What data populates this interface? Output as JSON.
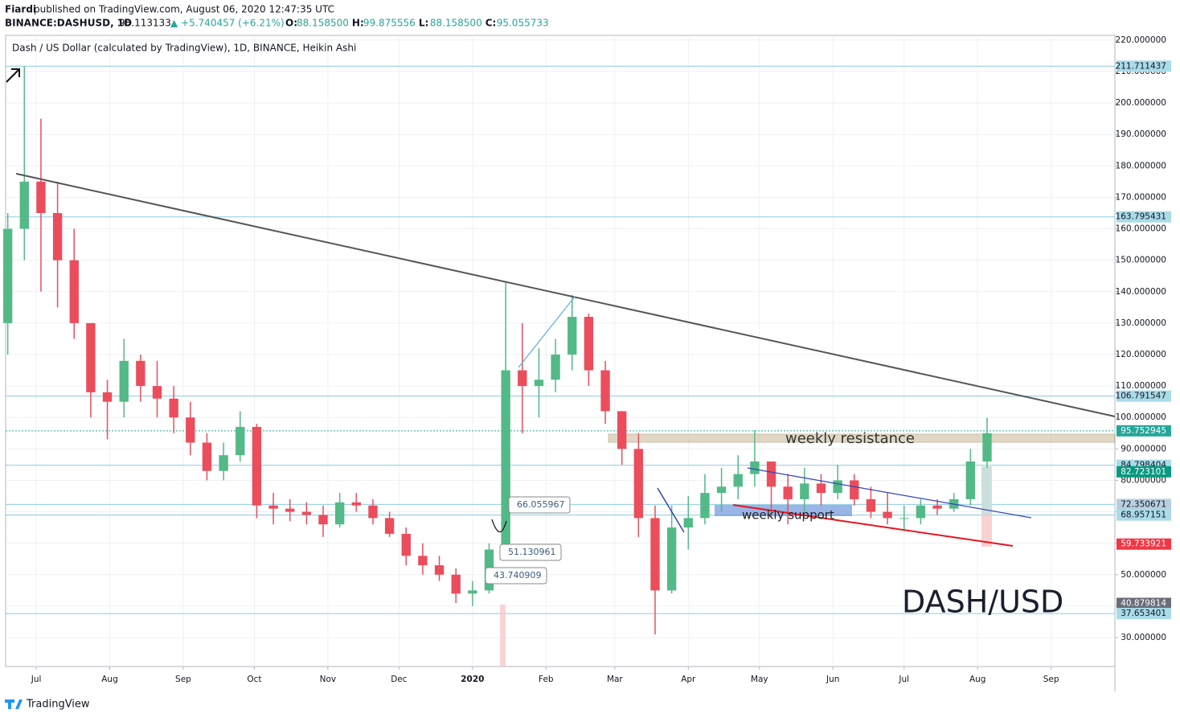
{
  "header": {
    "author": "Fiardi",
    "published": "published on TradingView.com, August 06, 2020 12:47:35 UTC",
    "symbol": "BINANCE:DASHUSD, 1D",
    "last": "98.113133",
    "change": "▲ +5.740457 (+6.21%)",
    "ohlc": [
      {
        "label": "O:",
        "value": "88.158500"
      },
      {
        "label": "H:",
        "value": "99.875556"
      },
      {
        "label": "L:",
        "value": "88.158500"
      },
      {
        "label": "C:",
        "value": "95.055733"
      }
    ]
  },
  "footer": {
    "brand": "TradingView"
  },
  "chart_data": {
    "type": "candlestick",
    "title": "Dash / US Dollar (calculated by TradingView), 1D, BINANCE, Heikin Ashi",
    "up_color": "#53b987",
    "down_color": "#eb4d5c",
    "grid": true,
    "xlim": [
      -12.9,
      454.9
    ],
    "xticks": [
      {
        "value": 0,
        "label": "Jul"
      },
      {
        "value": 31,
        "label": "Aug"
      },
      {
        "value": 62,
        "label": "Sep"
      },
      {
        "value": 92,
        "label": "Oct"
      },
      {
        "value": 123,
        "label": "Nov"
      },
      {
        "value": 153,
        "label": "Dec"
      },
      {
        "value": 184,
        "label": "2020"
      },
      {
        "value": 215,
        "label": "Feb"
      },
      {
        "value": 244,
        "label": "Mar"
      },
      {
        "value": 275,
        "label": "Apr"
      },
      {
        "value": 305,
        "label": "May"
      },
      {
        "value": 336,
        "label": "Jun"
      },
      {
        "value": 366,
        "label": "Jul"
      },
      {
        "value": 397,
        "label": "Aug"
      },
      {
        "value": 428,
        "label": "Sep"
      }
    ],
    "ylim": [
      20.8,
      221.5
    ],
    "yticks": [
      {
        "value": 30,
        "label": "30.000000"
      },
      {
        "value": 40,
        "label": "40.000000"
      },
      {
        "value": 50,
        "label": "50.000000"
      },
      {
        "value": 60,
        "label": "60.000000"
      },
      {
        "value": 70,
        "label": "70.000000"
      },
      {
        "value": 80,
        "label": "80.000000"
      },
      {
        "value": 90,
        "label": "90.000000"
      },
      {
        "value": 100,
        "label": "100.000000"
      },
      {
        "value": 110,
        "label": "110.000000"
      },
      {
        "value": 120,
        "label": "120.000000"
      },
      {
        "value": 130,
        "label": "130.000000"
      },
      {
        "value": 140,
        "label": "140.000000"
      },
      {
        "value": 150,
        "label": "150.000000"
      },
      {
        "value": 160,
        "label": "160.000000"
      },
      {
        "value": 170,
        "label": "170.000000"
      },
      {
        "value": 180,
        "label": "180.000000"
      },
      {
        "value": 190,
        "label": "190.000000"
      },
      {
        "value": 200,
        "label": "200.000000"
      },
      {
        "value": 210,
        "label": "210.000000"
      },
      {
        "value": 220,
        "label": "220.000000"
      }
    ],
    "x": [
      -12,
      -5,
      2,
      9,
      16,
      23,
      30,
      37,
      44,
      51,
      58,
      65,
      72,
      79,
      86,
      93,
      100,
      107,
      114,
      121,
      128,
      135,
      142,
      149,
      156,
      163,
      170,
      177,
      184,
      191,
      198,
      205,
      212,
      219,
      226,
      233,
      240,
      247,
      254,
      261,
      268,
      275,
      282,
      289,
      296,
      303,
      310,
      317,
      324,
      331,
      338,
      345,
      352,
      359,
      366,
      373,
      380,
      387,
      394,
      401
    ],
    "open": [
      130,
      160,
      175,
      165,
      150,
      130,
      108,
      105,
      118,
      110,
      106,
      100,
      92,
      83,
      88,
      97,
      72,
      71,
      70,
      69,
      66,
      73,
      72,
      68,
      63,
      56,
      53,
      50,
      44,
      45,
      58,
      115,
      110,
      112,
      120,
      132,
      115,
      102,
      90,
      68,
      45,
      65,
      68,
      76,
      78,
      82,
      86,
      78,
      74,
      79,
      76,
      80,
      74,
      70,
      68,
      68,
      72,
      71,
      74,
      86
    ],
    "high": [
      165,
      211.7,
      195,
      175,
      160,
      130,
      112,
      125,
      120,
      118,
      110,
      105,
      95,
      92,
      102,
      98,
      76,
      74,
      73,
      72,
      76,
      76,
      74,
      70,
      65,
      60,
      56,
      52,
      48,
      60,
      143,
      130,
      122,
      125,
      139,
      133,
      118,
      102,
      95,
      72,
      72,
      75,
      82,
      84,
      88,
      96,
      86,
      82,
      84,
      82,
      85,
      82,
      78,
      76,
      72,
      74,
      74,
      76,
      90,
      99.9
    ],
    "low": [
      120,
      150,
      140,
      135,
      125,
      100,
      93,
      100,
      105,
      100,
      95,
      88,
      80,
      80,
      86,
      68,
      66,
      67,
      66,
      62,
      65,
      70,
      66,
      62,
      53,
      50,
      48,
      41,
      40,
      44,
      56,
      95,
      100,
      108,
      115,
      110,
      98,
      85,
      62,
      31,
      44,
      58,
      66,
      70,
      74,
      78,
      68,
      66,
      70,
      72,
      74,
      72,
      68,
      66,
      64,
      66,
      69,
      70,
      72,
      84
    ],
    "close": [
      160,
      175,
      165,
      150,
      130,
      108,
      105,
      118,
      110,
      106,
      100,
      92,
      83,
      88,
      97,
      72,
      71,
      70,
      69,
      66,
      73,
      72,
      68,
      63,
      56,
      53,
      50,
      44,
      45,
      58,
      115,
      110,
      112,
      120,
      132,
      115,
      102,
      90,
      68,
      45,
      65,
      68,
      76,
      78,
      82,
      86,
      78,
      74,
      79,
      76,
      80,
      74,
      70,
      68,
      68,
      72,
      71,
      74,
      86,
      95
    ],
    "levels": [
      {
        "value": 211.711437,
        "color": "#a9dbe8",
        "text_color": "#131722",
        "line": "solid"
      },
      {
        "value": 163.795431,
        "color": "#a9dbe8",
        "text_color": "#131722",
        "line": "solid"
      },
      {
        "value": 106.791547,
        "color": "#a9dbe8",
        "text_color": "#131722",
        "line": "solid"
      },
      {
        "value": 95.752945,
        "color": "#26a69a",
        "text_color": "#ffffff",
        "line": "dotted"
      },
      {
        "value": 84.798404,
        "color": "#a9dbe8",
        "text_color": "#131722",
        "line": "solid"
      },
      {
        "value": 82.723101,
        "color": "#089981",
        "text_color": "#ffffff",
        "line": "none"
      },
      {
        "value": 72.350671,
        "color": "#b7cfe0",
        "text_color": "#131722",
        "line": "solid"
      },
      {
        "value": 68.957151,
        "color": "#a9dbe8",
        "text_color": "#131722",
        "line": "solid"
      },
      {
        "value": 59.733921,
        "color": "#f23645",
        "text_color": "#ffffff",
        "line": "none"
      },
      {
        "value": 40.879814,
        "color": "#6a6d78",
        "text_color": "#ffffff",
        "line": "none"
      },
      {
        "value": 37.653401,
        "color": "#a9dbe8",
        "text_color": "#131722",
        "line": "solid"
      }
    ],
    "annotations": {
      "resistance": "weekly resistance",
      "support": "weekly support",
      "pair": "DASH/USD",
      "callouts": [
        "66.055967",
        "51.130961",
        "43.740909"
      ]
    }
  }
}
